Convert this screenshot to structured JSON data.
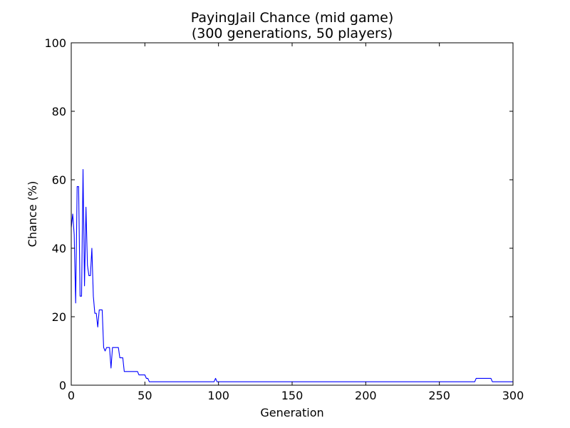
{
  "chart_data": {
    "type": "line",
    "title": "PayingJail Chance (mid game)",
    "subtitle": "(300 generations, 50 players)",
    "xlabel": "Generation",
    "ylabel": "Chance (%)",
    "xlim": [
      0,
      300
    ],
    "ylim": [
      0,
      100
    ],
    "xticks": [
      0,
      50,
      100,
      150,
      200,
      250,
      300
    ],
    "yticks": [
      0,
      20,
      40,
      60,
      80,
      100
    ],
    "grid": false,
    "series": [
      {
        "color": "#0000ff",
        "x": [
          0,
          1,
          2,
          3,
          4,
          5,
          6,
          7,
          8,
          9,
          10,
          11,
          12,
          13,
          14,
          15,
          16,
          17,
          18,
          19,
          20,
          21,
          22,
          23,
          24,
          25,
          26,
          27,
          28,
          29,
          30,
          31,
          32,
          33,
          34,
          35,
          36,
          37,
          38,
          39,
          40,
          41,
          42,
          43,
          44,
          45,
          46,
          47,
          48,
          49,
          50,
          51,
          52,
          53,
          54,
          60,
          70,
          80,
          90,
          96,
          97,
          98,
          99,
          100,
          150,
          200,
          250,
          274,
          275,
          276,
          280,
          285,
          286,
          290,
          300
        ],
        "values": [
          46,
          50,
          44,
          24,
          58,
          58,
          26,
          26,
          63,
          29,
          52,
          35,
          32,
          32,
          40,
          26,
          21,
          21,
          17,
          22,
          22,
          22,
          11,
          10,
          11,
          11,
          11,
          5,
          11,
          11,
          11,
          11,
          11,
          8,
          8,
          8,
          4,
          4,
          4,
          4,
          4,
          4,
          4,
          4,
          4,
          4,
          3,
          3,
          3,
          3,
          3,
          2,
          2,
          1,
          1,
          1,
          1,
          1,
          1,
          1,
          1,
          2,
          1,
          1,
          1,
          1,
          1,
          1,
          2,
          2,
          2,
          2,
          1,
          1,
          1
        ]
      }
    ]
  }
}
